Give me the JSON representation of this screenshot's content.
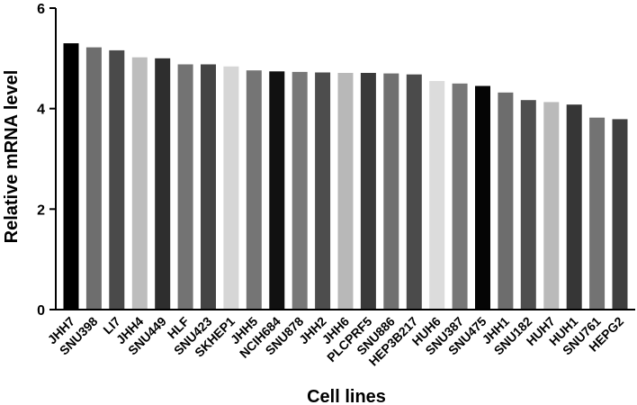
{
  "chart_data": {
    "type": "bar",
    "title": "",
    "xlabel": "Cell lines",
    "ylabel": "Relative mRNA level",
    "ylim": [
      0,
      6
    ],
    "yticks": [
      0,
      2,
      4,
      6
    ],
    "grid": false,
    "categories": [
      "JHH7",
      "SNU398",
      "LI7",
      "JHH4",
      "SNU449",
      "HLF",
      "SNU423",
      "SKHEP1",
      "JHH5",
      "NCIH684",
      "SNU878",
      "JHH2",
      "JHH6",
      "PLCPRF5",
      "SNU886",
      "HEP3B217",
      "HUH6",
      "SNU387",
      "SNU475",
      "JHH1",
      "SNU182",
      "HUH7",
      "HUH1",
      "SNU761",
      "HEPG2"
    ],
    "values": [
      5.3,
      5.22,
      5.16,
      5.02,
      5.0,
      4.88,
      4.88,
      4.84,
      4.76,
      4.74,
      4.73,
      4.72,
      4.71,
      4.71,
      4.7,
      4.68,
      4.55,
      4.5,
      4.45,
      4.32,
      4.17,
      4.13,
      4.08,
      3.82,
      3.79
    ],
    "colors": [
      "#000000",
      "#6e6e6e",
      "#4a4a4a",
      "#bdbdbd",
      "#2e2e2e",
      "#737373",
      "#444444",
      "#d6d6d6",
      "#757575",
      "#111111",
      "#787878",
      "#4d4d4d",
      "#b8b8b8",
      "#3a3a3a",
      "#707070",
      "#4b4b4b",
      "#dcdcdc",
      "#777777",
      "#050505",
      "#6d6d6d",
      "#4f4f4f",
      "#bababa",
      "#363636",
      "#737373",
      "#3f3f3f"
    ]
  }
}
